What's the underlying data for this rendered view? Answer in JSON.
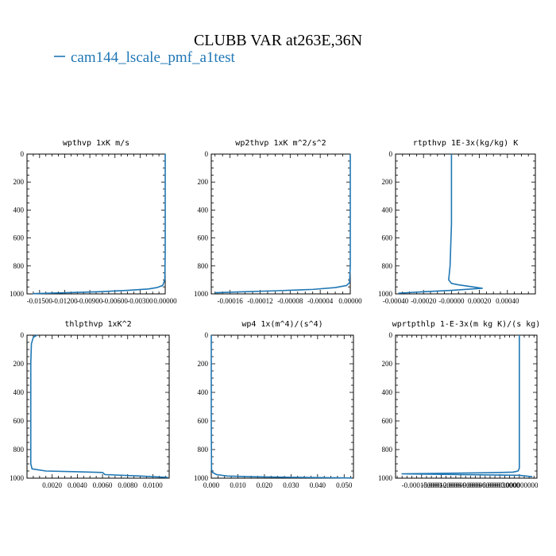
{
  "figure": {
    "title": "CLUBB VAR at263E,36N",
    "legend_label": "cam144_lscale_pmf_a1test",
    "series_color": "#1f77b4"
  },
  "chart_data": [
    {
      "type": "line",
      "title": "wpthvp  1xK m/s",
      "xlim": [
        -0.0165,
        0.0
      ],
      "ylim": [
        1000,
        0
      ],
      "xticks": [
        "-0.01500",
        "-0.01200",
        "-0.00900",
        "-0.00600",
        "-0.00300",
        "0.00000"
      ],
      "xtick_values": [
        -0.015,
        -0.012,
        -0.009,
        -0.006,
        -0.003,
        0.0
      ],
      "yticks": [
        "0",
        "200",
        "400",
        "600",
        "800",
        "1000"
      ],
      "series": [
        {
          "x": [
            0.0,
            0.0,
            0.0,
            -5e-05,
            -0.0003,
            -0.001,
            -0.002,
            -0.0045,
            -0.008,
            -0.012,
            -0.0158
          ],
          "y": [
            0,
            300,
            700,
            900,
            940,
            955,
            965,
            975,
            985,
            992,
            998
          ]
        }
      ]
    },
    {
      "type": "line",
      "title": "wp2thvp   1xK m^2/s^2",
      "xlim": [
        -0.000185,
        0.0
      ],
      "ylim": [
        1000,
        0
      ],
      "xticks": [
        "-0.00016",
        "-0.00012",
        "-0.00008",
        "-0.00004",
        "0.00000"
      ],
      "xtick_values": [
        -0.00016,
        -0.00012,
        -8e-05,
        -4e-05,
        0.0
      ],
      "yticks": [
        "0",
        "200",
        "400",
        "600",
        "800",
        "1000"
      ],
      "series": [
        {
          "x": [
            0.0,
            0.0,
            0.0,
            -1e-06,
            -5e-06,
            -2e-05,
            -5e-05,
            -0.0001,
            -0.00015,
            -0.00018
          ],
          "y": [
            0,
            300,
            800,
            920,
            940,
            955,
            968,
            978,
            986,
            992
          ]
        }
      ]
    },
    {
      "type": "line",
      "title": "rtpthvp   1E-3x(kg/kg) K",
      "xlim": [
        -0.0004,
        0.0006
      ],
      "ylim": [
        1000,
        0
      ],
      "xticks": [
        "-0.00040",
        "-0.00020",
        "-0.00000",
        "0.00020",
        "0.00040"
      ],
      "xtick_values": [
        -0.0004,
        -0.0002,
        0.0,
        0.0002,
        0.0004
      ],
      "yticks": [
        "0",
        "200",
        "400",
        "600",
        "800",
        "1000"
      ],
      "series": [
        {
          "x": [
            0.0,
            0.0,
            -1e-05,
            -2e-05,
            0.0,
            5e-05,
            0.00022,
            0.0,
            -0.0002,
            -0.00038
          ],
          "y": [
            0,
            500,
            800,
            900,
            925,
            935,
            960,
            975,
            985,
            995
          ]
        }
      ]
    },
    {
      "type": "line",
      "title": "thlpthvp    1xK^2",
      "xlim": [
        0.0,
        0.0113
      ],
      "ylim": [
        1000,
        0
      ],
      "xticks": [
        "0.0020",
        "0.0040",
        "0.0060",
        "0.0080",
        "0.0100"
      ],
      "xtick_values": [
        0.002,
        0.004,
        0.006,
        0.008,
        0.01
      ],
      "yticks": [
        "0",
        "200",
        "400",
        "600",
        "800",
        "1000"
      ],
      "series": [
        {
          "x": [
            0.0008,
            0.0005,
            0.00035,
            0.0003,
            0.0003,
            0.0003,
            0.0004,
            0.0015,
            0.004,
            0.006,
            0.0062,
            0.009,
            0.0112
          ],
          "y": [
            0,
            15,
            60,
            200,
            600,
            900,
            935,
            950,
            955,
            960,
            975,
            985,
            995
          ]
        }
      ]
    },
    {
      "type": "line",
      "title": "wp4   1x(m^4)/(s^4)",
      "xlim": [
        0.0,
        0.0535
      ],
      "ylim": [
        1000,
        0
      ],
      "xticks": [
        "0.000",
        "0.010",
        "0.020",
        "0.030",
        "0.040",
        "0.050"
      ],
      "xtick_values": [
        0.0,
        0.01,
        0.02,
        0.03,
        0.04,
        0.05
      ],
      "yticks": [
        "0",
        "200",
        "400",
        "600",
        "800",
        "1000"
      ],
      "series": [
        {
          "x": [
            0.0,
            0.0,
            0.0001,
            0.0005,
            0.002,
            0.006,
            0.015,
            0.03,
            0.045,
            0.053
          ],
          "y": [
            0,
            600,
            940,
            960,
            975,
            985,
            990,
            994,
            997,
            999
          ]
        }
      ]
    },
    {
      "type": "line",
      "title": "wprtpthlp   1-E-3x(m kg K)/(s kg)",
      "xlim": [
        -0.00019,
        2.7e-05
      ],
      "ylim": [
        1000,
        0
      ],
      "xticks": [
        "-0.000150000",
        "-0.000120000",
        "-0.000090000",
        "-0.000060000",
        "-0.000030000",
        "0.000000000"
      ],
      "xtick_values": [
        -0.00015,
        -0.00012,
        -9e-05,
        -6e-05,
        -3e-05,
        0.0
      ],
      "yticks": [
        "0",
        "200",
        "400",
        "600",
        "800",
        "1000"
      ],
      "series": [
        {
          "x": [
            0.0,
            0.0,
            0.0,
            -2e-06,
            -1e-05,
            -5e-05,
            -0.00012,
            -0.00018,
            0.0,
            2e-05
          ],
          "y": [
            0,
            500,
            930,
            950,
            958,
            962,
            966,
            970,
            980,
            990
          ]
        }
      ]
    }
  ]
}
